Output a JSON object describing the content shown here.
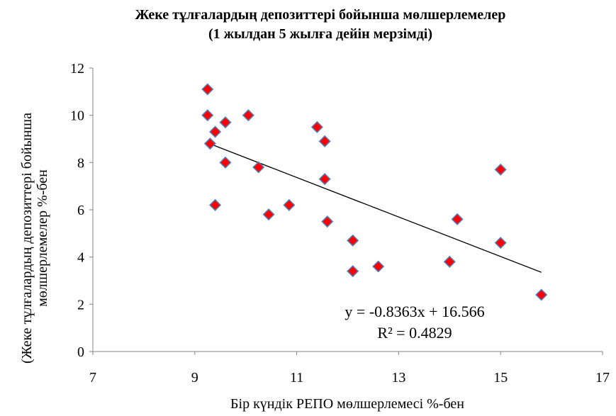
{
  "chart_data": {
    "type": "scatter",
    "title_lines": [
      "Жеке тұлғалардың депозиттері бойынша мөлшерлемелер",
      "(1 жылдан 5 жылға дейін мерзімді)"
    ],
    "xlabel": "Бір күндік РЕПО мөлшерлемесі %-бен",
    "ylabel_lines": [
      "(Жеке тұлғалардың депозиттері бойынша",
      "мөлшерлемелер  %-бен"
    ],
    "xlim": [
      7,
      17
    ],
    "ylim": [
      0,
      12
    ],
    "x_ticks": [
      "7",
      "9",
      "11",
      "13",
      "15",
      "17"
    ],
    "y_ticks": [
      "0",
      "2",
      "4",
      "6",
      "8",
      "10",
      "12"
    ],
    "grid": false,
    "marker_color": "#FF0000",
    "marker_edge_color": "#4F81BD",
    "points": [
      {
        "x": 9.25,
        "y": 11.1
      },
      {
        "x": 9.25,
        "y": 10.0
      },
      {
        "x": 9.3,
        "y": 8.8
      },
      {
        "x": 9.4,
        "y": 9.3
      },
      {
        "x": 9.4,
        "y": 6.2
      },
      {
        "x": 9.6,
        "y": 9.7
      },
      {
        "x": 9.6,
        "y": 8.0
      },
      {
        "x": 10.05,
        "y": 10.0
      },
      {
        "x": 10.25,
        "y": 7.8
      },
      {
        "x": 10.45,
        "y": 5.8
      },
      {
        "x": 10.85,
        "y": 6.2
      },
      {
        "x": 11.4,
        "y": 9.5
      },
      {
        "x": 11.55,
        "y": 8.9
      },
      {
        "x": 11.55,
        "y": 7.3
      },
      {
        "x": 11.6,
        "y": 5.5
      },
      {
        "x": 12.1,
        "y": 4.7
      },
      {
        "x": 12.1,
        "y": 3.4
      },
      {
        "x": 12.6,
        "y": 3.6
      },
      {
        "x": 14.0,
        "y": 3.8
      },
      {
        "x": 14.15,
        "y": 5.6
      },
      {
        "x": 15.0,
        "y": 7.7
      },
      {
        "x": 15.0,
        "y": 4.6
      },
      {
        "x": 15.8,
        "y": 2.4
      }
    ],
    "trendline": {
      "slope": -0.8363,
      "intercept": 16.566,
      "x_range": [
        9.25,
        15.8
      ],
      "color": "#000000"
    },
    "equation": "y = -0.8363x + 16.566",
    "r_squared": "R² = 0.4829"
  }
}
